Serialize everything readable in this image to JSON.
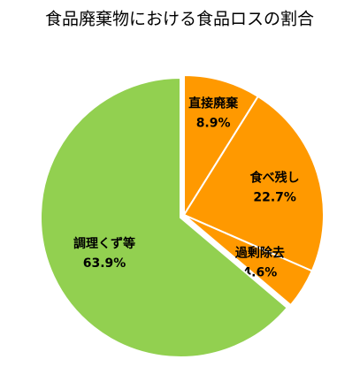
{
  "chart_data": {
    "type": "pie",
    "title": "食品廃棄物における食品ロスの割合",
    "categories": [
      "直接廃棄",
      "食べ残し",
      "過剰除去",
      "調理くず等"
    ],
    "values": [
      8.9,
      22.7,
      4.6,
      63.9
    ],
    "value_labels": [
      "8.9%",
      "22.7%",
      "4.6%",
      "63.9%"
    ],
    "colors": [
      "#FF9900",
      "#FF9900",
      "#FF9900",
      "#92D050"
    ]
  }
}
